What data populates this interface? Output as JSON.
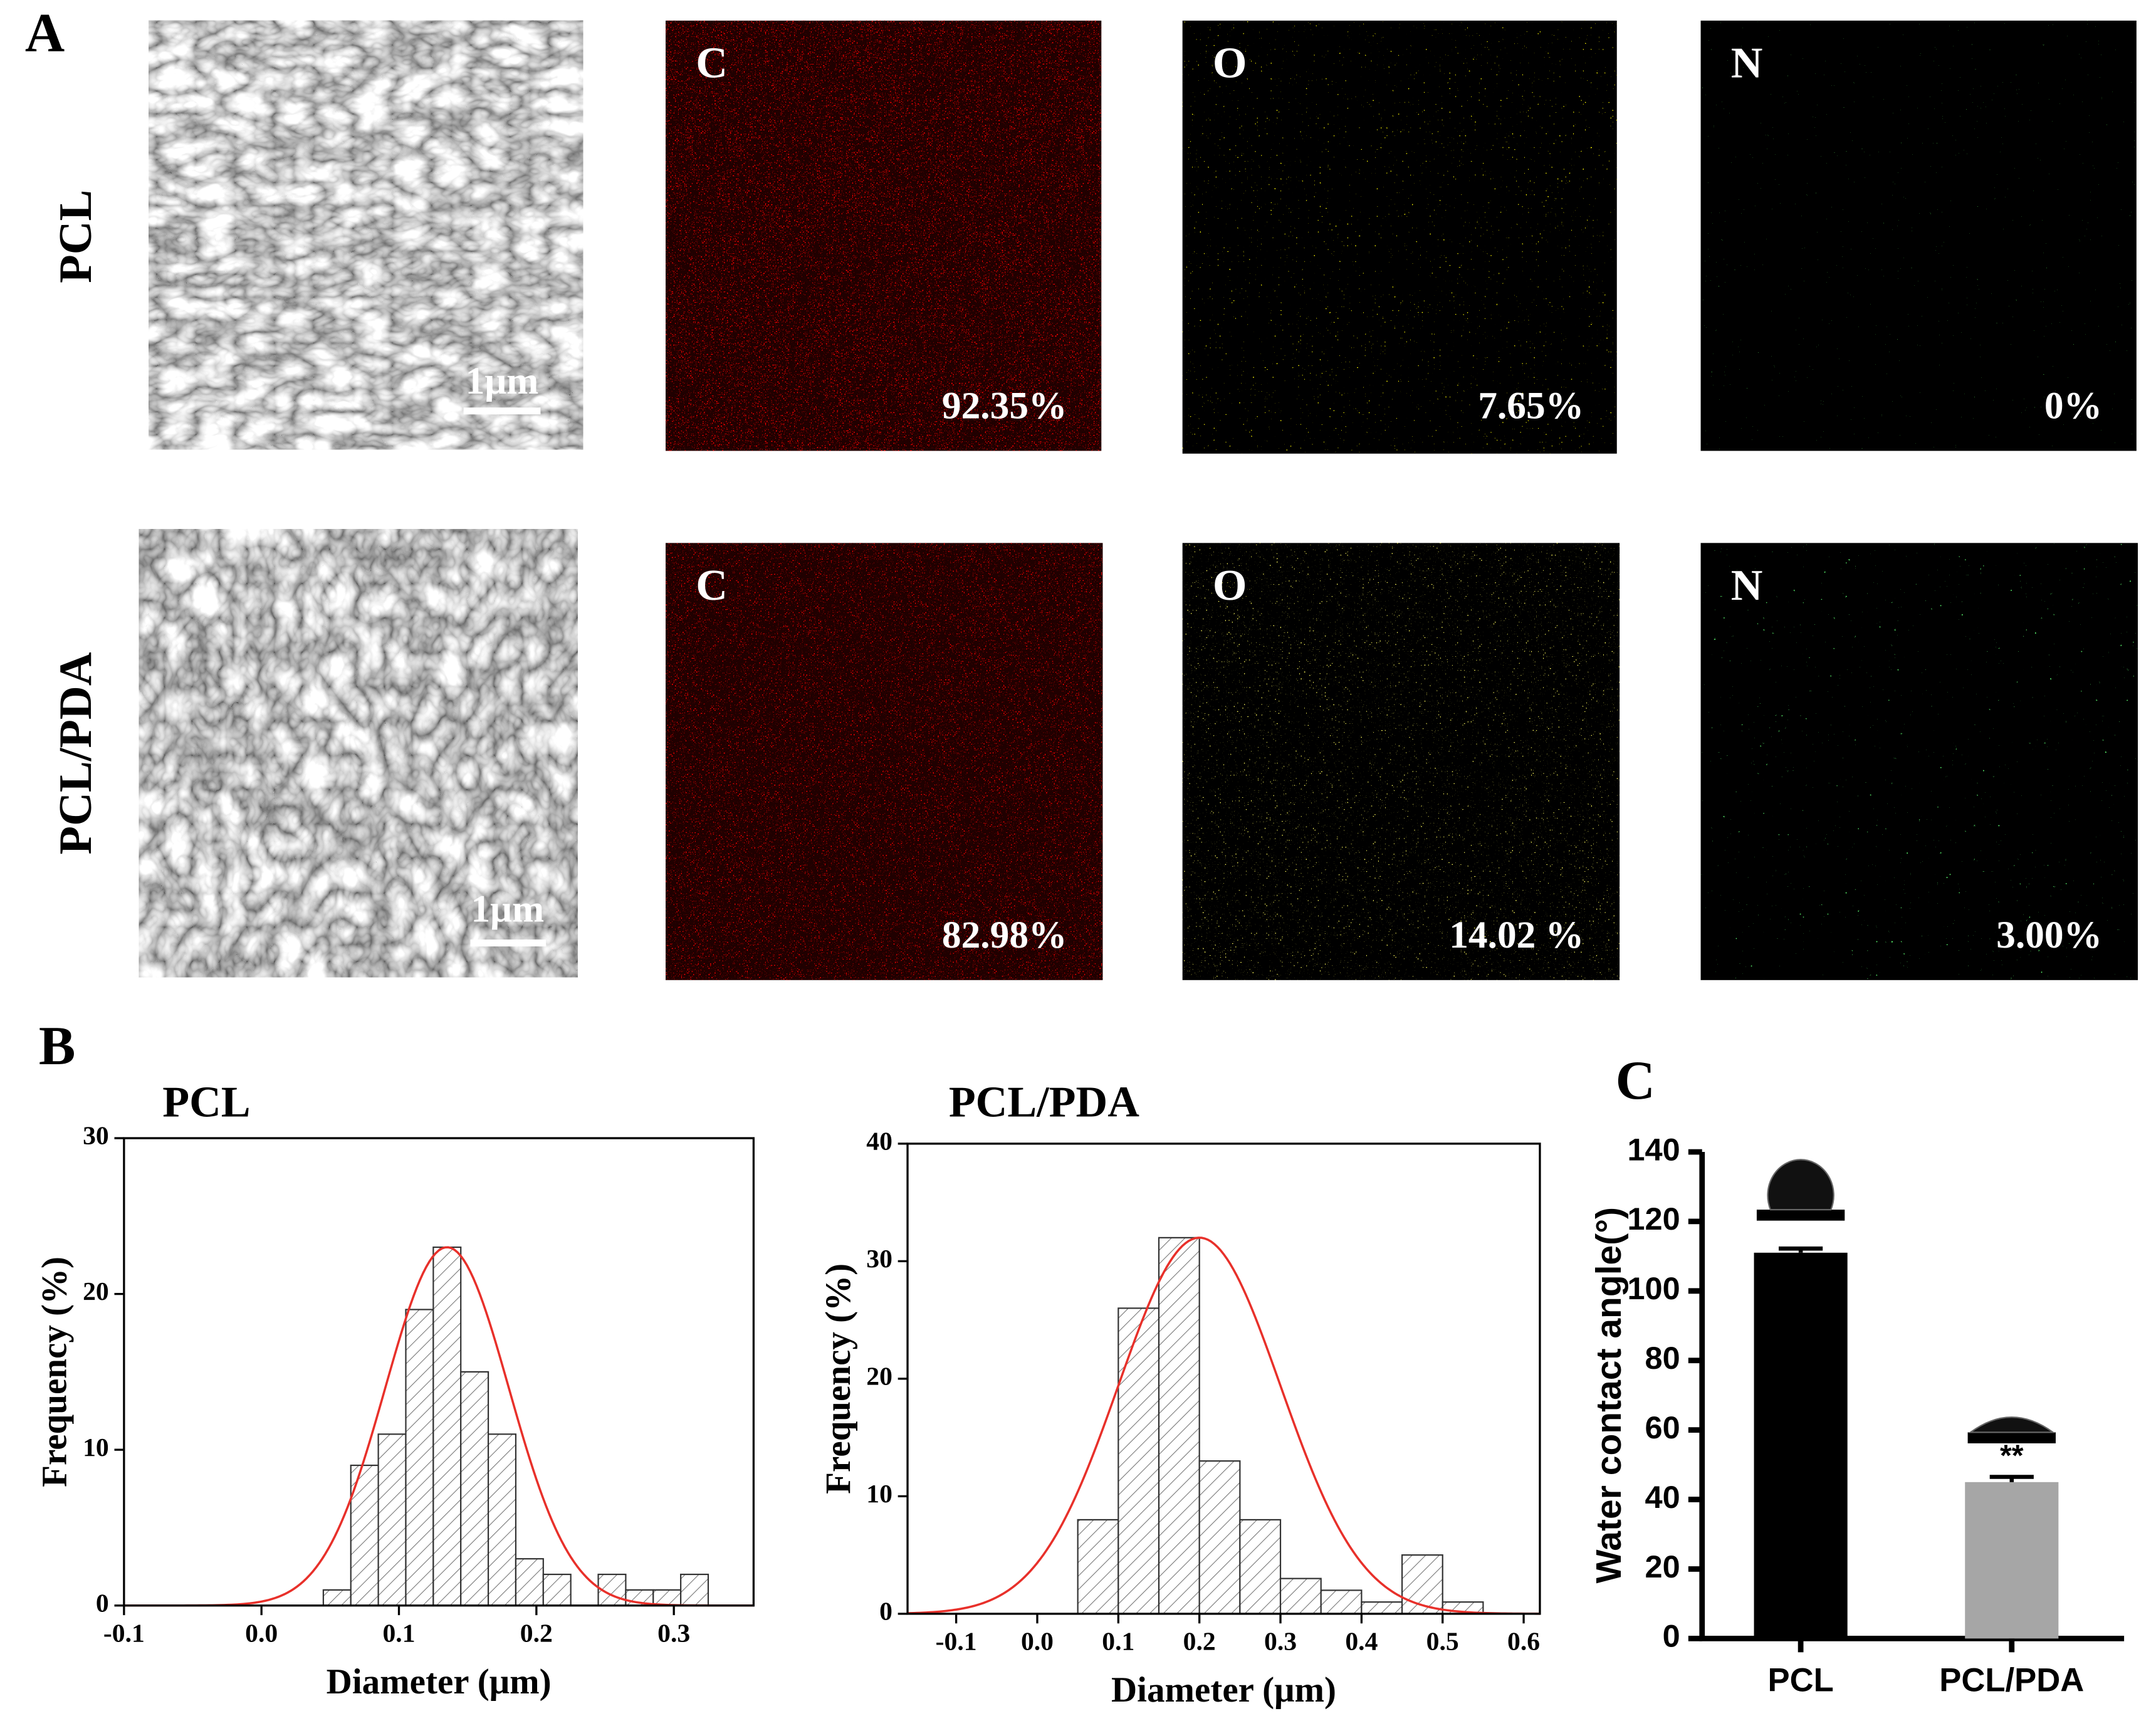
{
  "figure": {
    "panel_a": {
      "label": "A",
      "rows": [
        {
          "name": "PCL",
          "scale_bar": "1μm",
          "maps": [
            {
              "element": "C",
              "percent": "92.35%"
            },
            {
              "element": "O",
              "percent": "7.65%"
            },
            {
              "element": "N",
              "percent": "0%"
            }
          ]
        },
        {
          "name": "PCL/PDA",
          "scale_bar": "1μm",
          "maps": [
            {
              "element": "C",
              "percent": "82.98%"
            },
            {
              "element": "O",
              "percent": "14.02 %"
            },
            {
              "element": "N",
              "percent": "3.00%"
            }
          ]
        }
      ]
    },
    "panel_b": {
      "label": "B"
    },
    "panel_c": {
      "label": "C"
    }
  },
  "chart_data": [
    {
      "type": "histogram",
      "title": "PCL",
      "x_label": "Diameter (μm)",
      "y_label": "Frequency (%)",
      "bins": [
        0.045,
        0.065,
        0.085,
        0.105,
        0.125,
        0.145,
        0.165,
        0.185,
        0.205,
        0.225,
        0.245,
        0.265,
        0.285,
        0.305,
        0.325
      ],
      "values": [
        1,
        9,
        11,
        19,
        23,
        15,
        11,
        3,
        2,
        0,
        2,
        1,
        1,
        2
      ],
      "fit": {
        "mean": 0.135,
        "sd": 0.045,
        "peak": 23,
        "color": "#e8302a"
      },
      "xlim": [
        -0.1,
        0.358
      ],
      "xticks": [
        -0.1,
        {
          "value": 0,
          "label": "0.0"
        },
        0.1,
        0.2,
        0.3
      ],
      "ylim": [
        0,
        30
      ],
      "yticks": [
        0,
        10,
        20,
        30
      ]
    },
    {
      "type": "histogram",
      "title": "PCL/PDA",
      "x_label": "Diameter (μm)",
      "y_label": "Frequency (%)",
      "bins": [
        0.05,
        0.1,
        0.15,
        0.2,
        0.25,
        0.3,
        0.35,
        0.4,
        0.45,
        0.5,
        0.55
      ],
      "values": [
        8,
        26,
        32,
        13,
        8,
        3,
        2,
        1,
        5,
        1
      ],
      "fit": {
        "mean": 0.2,
        "sd": 0.1,
        "peak": 32,
        "color": "#e8302a"
      },
      "xlim": [
        -0.16,
        0.62
      ],
      "xticks": [
        -0.1,
        {
          "value": 0,
          "label": "0.0"
        },
        0.1,
        0.2,
        0.3,
        0.4,
        0.5,
        0.6
      ],
      "ylim": [
        0,
        40
      ],
      "yticks": [
        0,
        10,
        20,
        30,
        40
      ]
    },
    {
      "type": "bar",
      "y_label": "Water contact  angle(°)",
      "categories": [
        "PCL",
        "PCL/PDA"
      ],
      "values": [
        111,
        45
      ],
      "errors": [
        1.2,
        1.5
      ],
      "colors": [
        "#000000",
        "#a6a6a6"
      ],
      "annotations": [
        null,
        "**"
      ],
      "ylim": [
        0,
        140
      ],
      "yticks": [
        0,
        20,
        40,
        60,
        80,
        100,
        120,
        140
      ]
    }
  ]
}
